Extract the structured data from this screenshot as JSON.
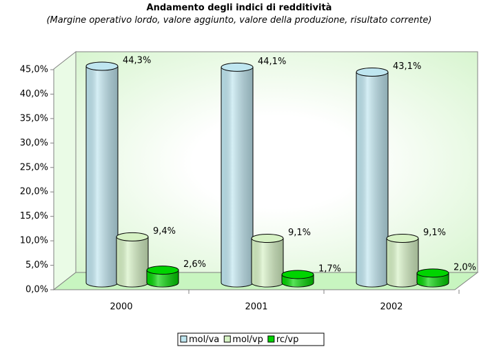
{
  "chart_data": {
    "type": "bar3d",
    "title": "Andamento degli indici di redditività",
    "subtitle": "(Margine operativo lordo, valore aggiunto, valore della produzione, risultato corrente)",
    "categories": [
      "2000",
      "2001",
      "2002"
    ],
    "series": [
      {
        "name": "mol/va",
        "color": "#bfe6f0",
        "values": [
          44.3,
          44.1,
          43.1
        ],
        "value_labels": [
          "44,3%",
          "44,1%",
          "43,1%"
        ]
      },
      {
        "name": "mol/vp",
        "color": "#d6f2c4",
        "values": [
          9.4,
          9.1,
          9.1
        ],
        "value_labels": [
          "9,4%",
          "9,1%",
          "9,1%"
        ]
      },
      {
        "name": "rc/vp",
        "color": "#00d400",
        "values": [
          2.6,
          1.7,
          2.0
        ],
        "value_labels": [
          "2,6%",
          "1,7%",
          "2,0%"
        ]
      }
    ],
    "ylim": [
      0,
      45
    ],
    "yticks": [
      {
        "value": 0,
        "label": "0,0%"
      },
      {
        "value": 5,
        "label": "5,0%"
      },
      {
        "value": 10,
        "label": "10,0%"
      },
      {
        "value": 15,
        "label": "15,0%"
      },
      {
        "value": 20,
        "label": "20,0%"
      },
      {
        "value": 25,
        "label": "25,0%"
      },
      {
        "value": 30,
        "label": "30,0%"
      },
      {
        "value": 35,
        "label": "35,0%"
      },
      {
        "value": 40,
        "label": "40,0%"
      },
      {
        "value": 45,
        "label": "45,0%"
      }
    ],
    "legend": "bottom"
  }
}
